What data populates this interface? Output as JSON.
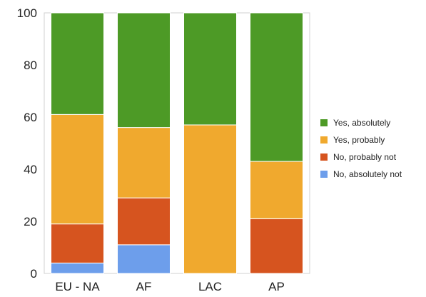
{
  "chart_data": {
    "type": "bar",
    "stacked": true,
    "categories": [
      "EU - NA",
      "AF",
      "LAC",
      "AP"
    ],
    "series": [
      {
        "name": "No, absolutely not",
        "color": "#6d9eeb",
        "values": [
          4,
          11,
          0,
          0
        ]
      },
      {
        "name": "No, probably not",
        "color": "#d6541f",
        "values": [
          15,
          18,
          0,
          21
        ]
      },
      {
        "name": "Yes, probably",
        "color": "#f0a92e",
        "values": [
          42,
          27,
          57,
          22
        ]
      },
      {
        "name": "Yes, absolutely",
        "color": "#4d9a26",
        "values": [
          39,
          44,
          43,
          57
        ]
      }
    ],
    "legend_order": [
      "Yes, absolutely",
      "Yes, probably",
      "No, probably not",
      "No, absolutely not"
    ],
    "ylim": [
      0,
      100
    ],
    "yticks": [
      0,
      20,
      40,
      60,
      80,
      100
    ],
    "grid": false,
    "legend_position": "right"
  }
}
